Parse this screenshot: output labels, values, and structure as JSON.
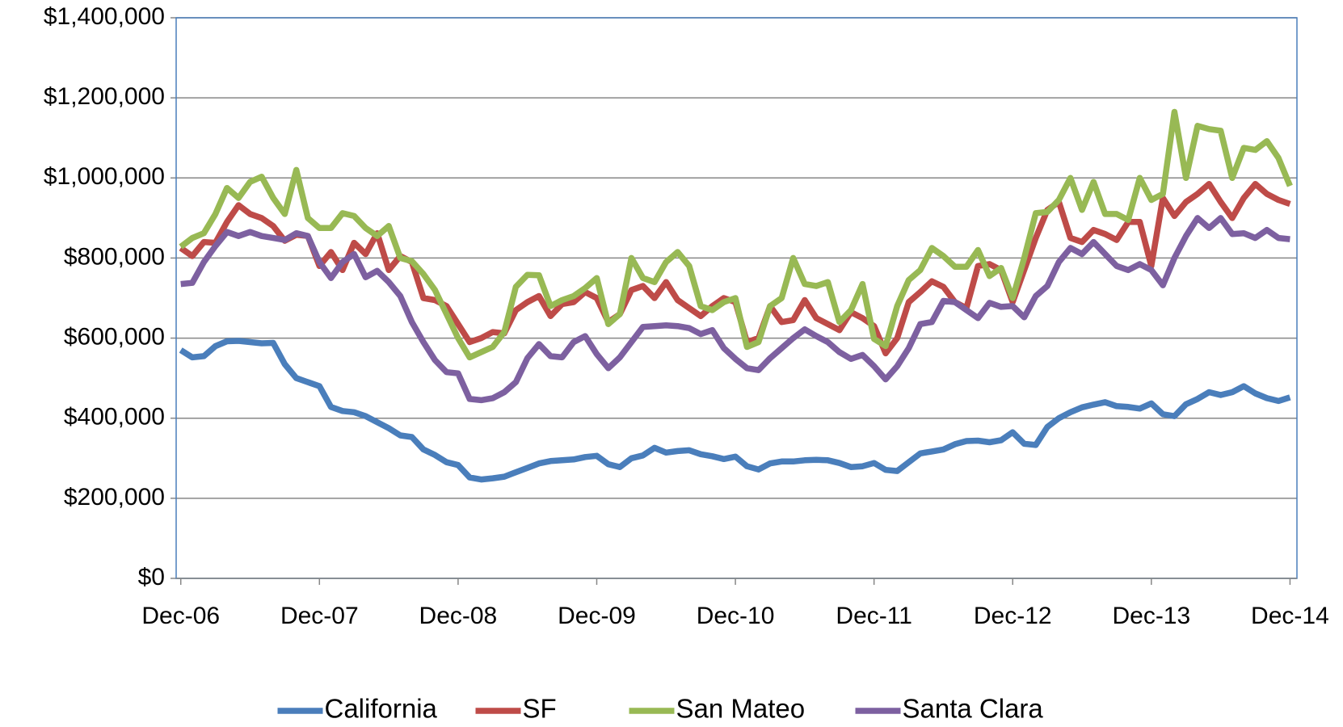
{
  "chart_data": {
    "type": "line",
    "categories": [
      "Dec-06",
      null,
      null,
      null,
      null,
      null,
      null,
      null,
      null,
      null,
      null,
      null,
      "Dec-07",
      null,
      null,
      null,
      null,
      null,
      null,
      null,
      null,
      null,
      null,
      null,
      "Dec-08",
      null,
      null,
      null,
      null,
      null,
      null,
      null,
      null,
      null,
      null,
      null,
      "Dec-09",
      null,
      null,
      null,
      null,
      null,
      null,
      null,
      null,
      null,
      null,
      null,
      "Dec-10",
      null,
      null,
      null,
      null,
      null,
      null,
      null,
      null,
      null,
      null,
      null,
      "Dec-11",
      null,
      null,
      null,
      null,
      null,
      null,
      null,
      null,
      null,
      null,
      null,
      "Dec-12",
      null,
      null,
      null,
      null,
      null,
      null,
      null,
      null,
      null,
      null,
      null,
      "Dec-13",
      null,
      null,
      null,
      null,
      null,
      null,
      null,
      null,
      null,
      null,
      null,
      "Dec-14"
    ],
    "series": [
      {
        "name": "California",
        "color": "#4a7ebb",
        "values": [
          570000,
          552000,
          555000,
          580000,
          592000,
          593000,
          590000,
          587000,
          588000,
          535000,
          500000,
          490000,
          480000,
          428000,
          418000,
          415000,
          405000,
          390000,
          375000,
          357000,
          353000,
          322000,
          308000,
          290000,
          283000,
          252000,
          247000,
          250000,
          254000,
          265000,
          276000,
          287000,
          293000,
          295000,
          297000,
          303000,
          306000,
          285000,
          278000,
          300000,
          307000,
          326000,
          314000,
          318000,
          320000,
          310000,
          305000,
          298000,
          304000,
          280000,
          272000,
          287000,
          292000,
          292000,
          295000,
          296000,
          295000,
          288000,
          278000,
          280000,
          288000,
          271000,
          268000,
          290000,
          312000,
          317000,
          322000,
          335000,
          343000,
          344000,
          340000,
          345000,
          365000,
          336000,
          333000,
          378000,
          400000,
          415000,
          427000,
          434000,
          440000,
          430000,
          428000,
          424000,
          437000,
          410000,
          405000,
          435000,
          448000,
          465000,
          458000,
          465000,
          480000,
          462000,
          450000,
          443000,
          452000
        ]
      },
      {
        "name": "SF",
        "color": "#be4b48",
        "values": [
          825000,
          805000,
          840000,
          838000,
          890000,
          932000,
          910000,
          900000,
          880000,
          843000,
          858000,
          855000,
          780000,
          815000,
          770000,
          838000,
          810000,
          862000,
          770000,
          805000,
          790000,
          700000,
          695000,
          680000,
          635000,
          590000,
          600000,
          615000,
          612000,
          670000,
          690000,
          705000,
          655000,
          685000,
          690000,
          715000,
          700000,
          640000,
          660000,
          720000,
          730000,
          700000,
          740000,
          695000,
          675000,
          655000,
          680000,
          700000,
          690000,
          590000,
          600000,
          680000,
          640000,
          645000,
          695000,
          650000,
          635000,
          620000,
          665000,
          650000,
          630000,
          562000,
          600000,
          690000,
          715000,
          742000,
          728000,
          690000,
          675000,
          780000,
          785000,
          770000,
          690000,
          770000,
          850000,
          920000,
          940000,
          850000,
          840000,
          870000,
          860000,
          845000,
          890000,
          890000,
          780000,
          950000,
          905000,
          940000,
          960000,
          985000,
          940000,
          900000,
          950000,
          985000,
          960000,
          945000,
          935000
        ]
      },
      {
        "name": "San Mateo",
        "color": "#98b954",
        "values": [
          828000,
          850000,
          862000,
          910000,
          975000,
          950000,
          990000,
          1003000,
          950000,
          910000,
          1020000,
          900000,
          875000,
          875000,
          912000,
          905000,
          875000,
          855000,
          880000,
          800000,
          792000,
          760000,
          720000,
          660000,
          600000,
          552000,
          565000,
          578000,
          615000,
          728000,
          758000,
          757000,
          680000,
          695000,
          705000,
          725000,
          750000,
          635000,
          660000,
          800000,
          750000,
          740000,
          790000,
          815000,
          780000,
          680000,
          670000,
          690000,
          700000,
          578000,
          590000,
          680000,
          700000,
          800000,
          735000,
          730000,
          740000,
          640000,
          670000,
          735000,
          598000,
          580000,
          680000,
          745000,
          770000,
          825000,
          805000,
          778000,
          778000,
          820000,
          755000,
          775000,
          700000,
          800000,
          912000,
          915000,
          945000,
          1000000,
          920000,
          990000,
          910000,
          910000,
          895000,
          1000000,
          945000,
          960000,
          1165000,
          1000000,
          1130000,
          1122000,
          1118000,
          1000000,
          1075000,
          1070000,
          1092000,
          1050000,
          980000
        ]
      },
      {
        "name": "Santa Clara",
        "color": "#7d60a0",
        "values": [
          735000,
          738000,
          790000,
          830000,
          865000,
          855000,
          865000,
          855000,
          850000,
          845000,
          862000,
          855000,
          790000,
          750000,
          790000,
          810000,
          752000,
          768000,
          740000,
          705000,
          640000,
          590000,
          545000,
          515000,
          512000,
          448000,
          445000,
          450000,
          465000,
          490000,
          550000,
          585000,
          555000,
          552000,
          590000,
          605000,
          560000,
          525000,
          552000,
          590000,
          628000,
          630000,
          632000,
          630000,
          625000,
          610000,
          620000,
          575000,
          548000,
          525000,
          520000,
          550000,
          575000,
          600000,
          622000,
          605000,
          590000,
          565000,
          548000,
          558000,
          530000,
          497000,
          530000,
          575000,
          635000,
          640000,
          693000,
          690000,
          670000,
          650000,
          688000,
          678000,
          680000,
          652000,
          705000,
          730000,
          790000,
          825000,
          810000,
          840000,
          810000,
          780000,
          770000,
          785000,
          770000,
          732000,
          800000,
          855000,
          900000,
          875000,
          900000,
          860000,
          862000,
          850000,
          870000,
          850000,
          847000
        ]
      }
    ],
    "ylim": [
      0,
      1400000
    ],
    "yticks": [
      {
        "value": 0,
        "label": "$0"
      },
      {
        "value": 200000,
        "label": "$200,000"
      },
      {
        "value": 400000,
        "label": "$400,000"
      },
      {
        "value": 600000,
        "label": "$600,000"
      },
      {
        "value": 800000,
        "label": "$800,000"
      },
      {
        "value": 1000000,
        "label": "$1,000,000"
      },
      {
        "value": 1200000,
        "label": "$1,200,000"
      },
      {
        "value": 1400000,
        "label": "$1,400,000"
      }
    ],
    "grid": true,
    "legend": "bottom"
  }
}
